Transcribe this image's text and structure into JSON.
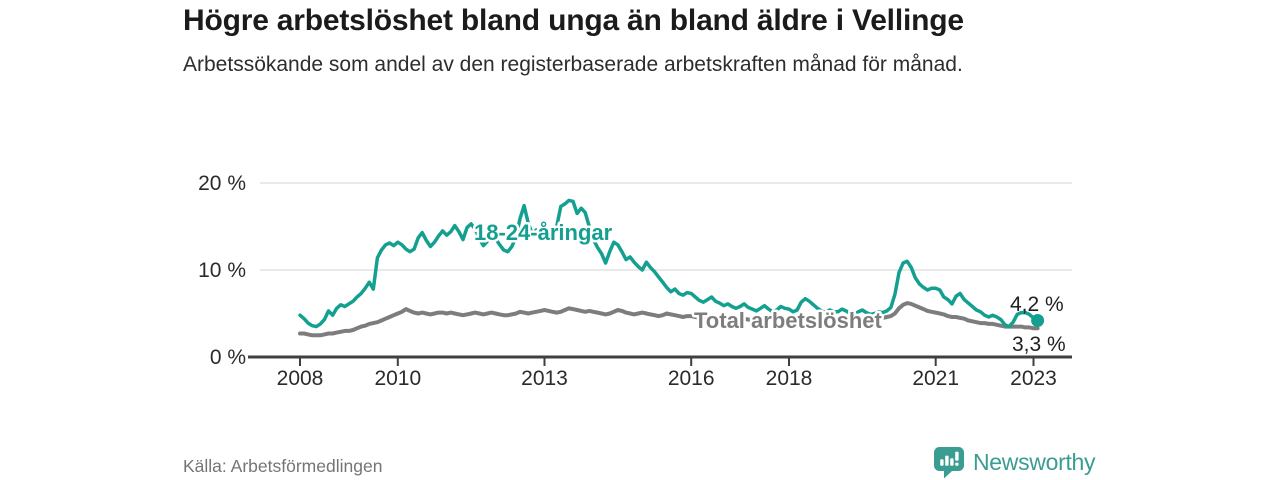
{
  "header": {
    "title": "Högre arbetslöshet bland unga än bland äldre i Vellinge",
    "subtitle": "Arbetssökande som andel av den registerbaserade arbetskraften månad för månad."
  },
  "annotations": {
    "young_label": "18-24-åringar",
    "total_label": "Total arbetslöshet",
    "young_end_value": "4,2 %",
    "total_end_value": "3,3 %"
  },
  "footer": {
    "source": "Källa: Arbetsförmedlingen",
    "logo_text": "Newsworthy"
  },
  "colors": {
    "young_line": "#14a090",
    "total_line": "#7d7d7d",
    "gridline": "#dcdcdc",
    "axis": "#3f3f3f",
    "tick_text": "#2b2b2b",
    "logo": "#3b9c91",
    "end_value_text": "#1f1f1f"
  },
  "chart_data": {
    "type": "line",
    "title": "Högre arbetslöshet bland unga än bland äldre i Vellinge",
    "xlabel": "",
    "ylabel": "Arbetssökande som andel av den registerbaserade arbetskraften",
    "x_unit": "decimal_year_monthly",
    "x_start": 2008.0,
    "x_step": 0.0833333,
    "x_ticks": [
      2008,
      2010,
      2013,
      2016,
      2018,
      2021,
      2023
    ],
    "x_tick_labels": [
      "2008",
      "2010",
      "2013",
      "2016",
      "2018",
      "2021",
      "2023"
    ],
    "y_ticks": [
      0,
      10,
      20
    ],
    "y_tick_labels": [
      "0 %",
      "10 %",
      "20 %"
    ],
    "ylim": [
      0,
      20.5
    ],
    "xlim": [
      2007.2,
      2023.8
    ],
    "grid": "horizontal",
    "legend_position": "inline-labels",
    "series": [
      {
        "name": "18-24-åringar",
        "color": "#14a090",
        "end_label": "4,2 %",
        "values": [
          4.8,
          4.4,
          3.9,
          3.6,
          3.5,
          3.8,
          4.3,
          5.3,
          4.8,
          5.6,
          6.0,
          5.8,
          6.1,
          6.4,
          6.9,
          7.3,
          7.9,
          8.6,
          7.8,
          11.4,
          12.3,
          12.9,
          13.1,
          12.8,
          13.2,
          12.9,
          12.4,
          12.1,
          12.4,
          13.7,
          14.3,
          13.4,
          12.7,
          13.2,
          13.9,
          14.5,
          14.0,
          14.4,
          15.1,
          14.4,
          13.5,
          14.9,
          15.3,
          14.7,
          13.6,
          12.8,
          13.3,
          14.0,
          13.6,
          12.9,
          12.3,
          12.1,
          12.7,
          13.8,
          15.9,
          17.4,
          15.4,
          14.1,
          14.6,
          14.0,
          13.8,
          14.3,
          14.0,
          15.0,
          17.3,
          17.6,
          18.0,
          17.9,
          16.5,
          17.1,
          16.6,
          15.0,
          13.5,
          12.6,
          11.9,
          10.8,
          12.1,
          13.2,
          12.9,
          12.1,
          11.2,
          11.5,
          10.9,
          10.4,
          10.0,
          10.9,
          10.3,
          9.8,
          9.2,
          8.6,
          8.0,
          7.5,
          7.8,
          7.3,
          7.1,
          7.4,
          7.3,
          6.9,
          6.5,
          6.3,
          6.6,
          6.9,
          6.4,
          6.2,
          5.9,
          6.1,
          5.8,
          5.6,
          5.8,
          6.1,
          5.7,
          5.5,
          5.3,
          5.6,
          5.9,
          5.5,
          5.2,
          5.4,
          5.8,
          5.6,
          5.5,
          5.2,
          5.4,
          6.3,
          6.7,
          6.4,
          6.0,
          5.6,
          5.3,
          5.1,
          5.4,
          5.2,
          5.2,
          5.5,
          5.3,
          5.0,
          4.9,
          5.2,
          5.4,
          5.1,
          4.9,
          5.0,
          5.2,
          5.1,
          5.3,
          5.7,
          7.2,
          9.7,
          10.8,
          11.0,
          10.3,
          9.1,
          8.4,
          8.0,
          7.7,
          7.9,
          7.9,
          7.7,
          6.9,
          6.6,
          6.1,
          7.0,
          7.3,
          6.6,
          6.2,
          5.8,
          5.4,
          5.2,
          4.8,
          4.6,
          4.8,
          4.6,
          4.3,
          3.7,
          3.5,
          4.0,
          4.9,
          5.1,
          5.1,
          4.9,
          4.5,
          4.2
        ]
      },
      {
        "name": "Total arbetslöshet",
        "color": "#7d7d7d",
        "end_label": "3,3 %",
        "values": [
          2.7,
          2.7,
          2.6,
          2.5,
          2.5,
          2.5,
          2.6,
          2.7,
          2.7,
          2.8,
          2.9,
          3.0,
          3.0,
          3.1,
          3.3,
          3.5,
          3.6,
          3.8,
          3.9,
          4.0,
          4.2,
          4.4,
          4.6,
          4.8,
          5.0,
          5.2,
          5.5,
          5.3,
          5.1,
          5.0,
          5.1,
          5.0,
          4.9,
          5.0,
          5.1,
          5.1,
          5.0,
          5.1,
          5.0,
          4.9,
          4.8,
          4.9,
          5.0,
          5.1,
          5.0,
          4.9,
          5.0,
          5.1,
          5.0,
          4.9,
          4.8,
          4.8,
          4.9,
          5.0,
          5.2,
          5.1,
          5.0,
          5.1,
          5.2,
          5.3,
          5.4,
          5.3,
          5.2,
          5.1,
          5.2,
          5.4,
          5.6,
          5.5,
          5.4,
          5.3,
          5.2,
          5.3,
          5.2,
          5.1,
          5.0,
          4.9,
          5.0,
          5.2,
          5.4,
          5.3,
          5.1,
          5.0,
          4.9,
          5.0,
          5.1,
          5.0,
          4.9,
          4.8,
          4.7,
          4.8,
          5.0,
          4.9,
          4.8,
          4.7,
          4.6,
          4.7,
          4.7,
          4.6,
          4.5,
          4.4,
          4.4,
          4.5,
          4.6,
          4.6,
          4.5,
          4.4,
          4.4,
          4.5,
          4.5,
          4.4,
          4.3,
          4.3,
          4.2,
          4.3,
          4.5,
          4.4,
          4.3,
          4.2,
          4.2,
          4.3,
          4.3,
          4.2,
          4.2,
          4.1,
          4.1,
          4.2,
          4.4,
          4.3,
          4.2,
          4.2,
          4.3,
          4.4,
          4.4,
          4.3,
          4.3,
          4.2,
          4.2,
          4.3,
          4.5,
          4.5,
          4.4,
          4.4,
          4.5,
          4.5,
          4.6,
          4.7,
          5.0,
          5.6,
          6.0,
          6.2,
          6.1,
          5.9,
          5.7,
          5.5,
          5.3,
          5.2,
          5.1,
          5.0,
          4.9,
          4.7,
          4.6,
          4.6,
          4.5,
          4.4,
          4.2,
          4.1,
          4.0,
          3.9,
          3.9,
          3.8,
          3.8,
          3.7,
          3.6,
          3.5,
          3.5,
          3.5,
          3.5,
          3.5,
          3.4,
          3.4,
          3.3,
          3.3
        ]
      }
    ]
  }
}
